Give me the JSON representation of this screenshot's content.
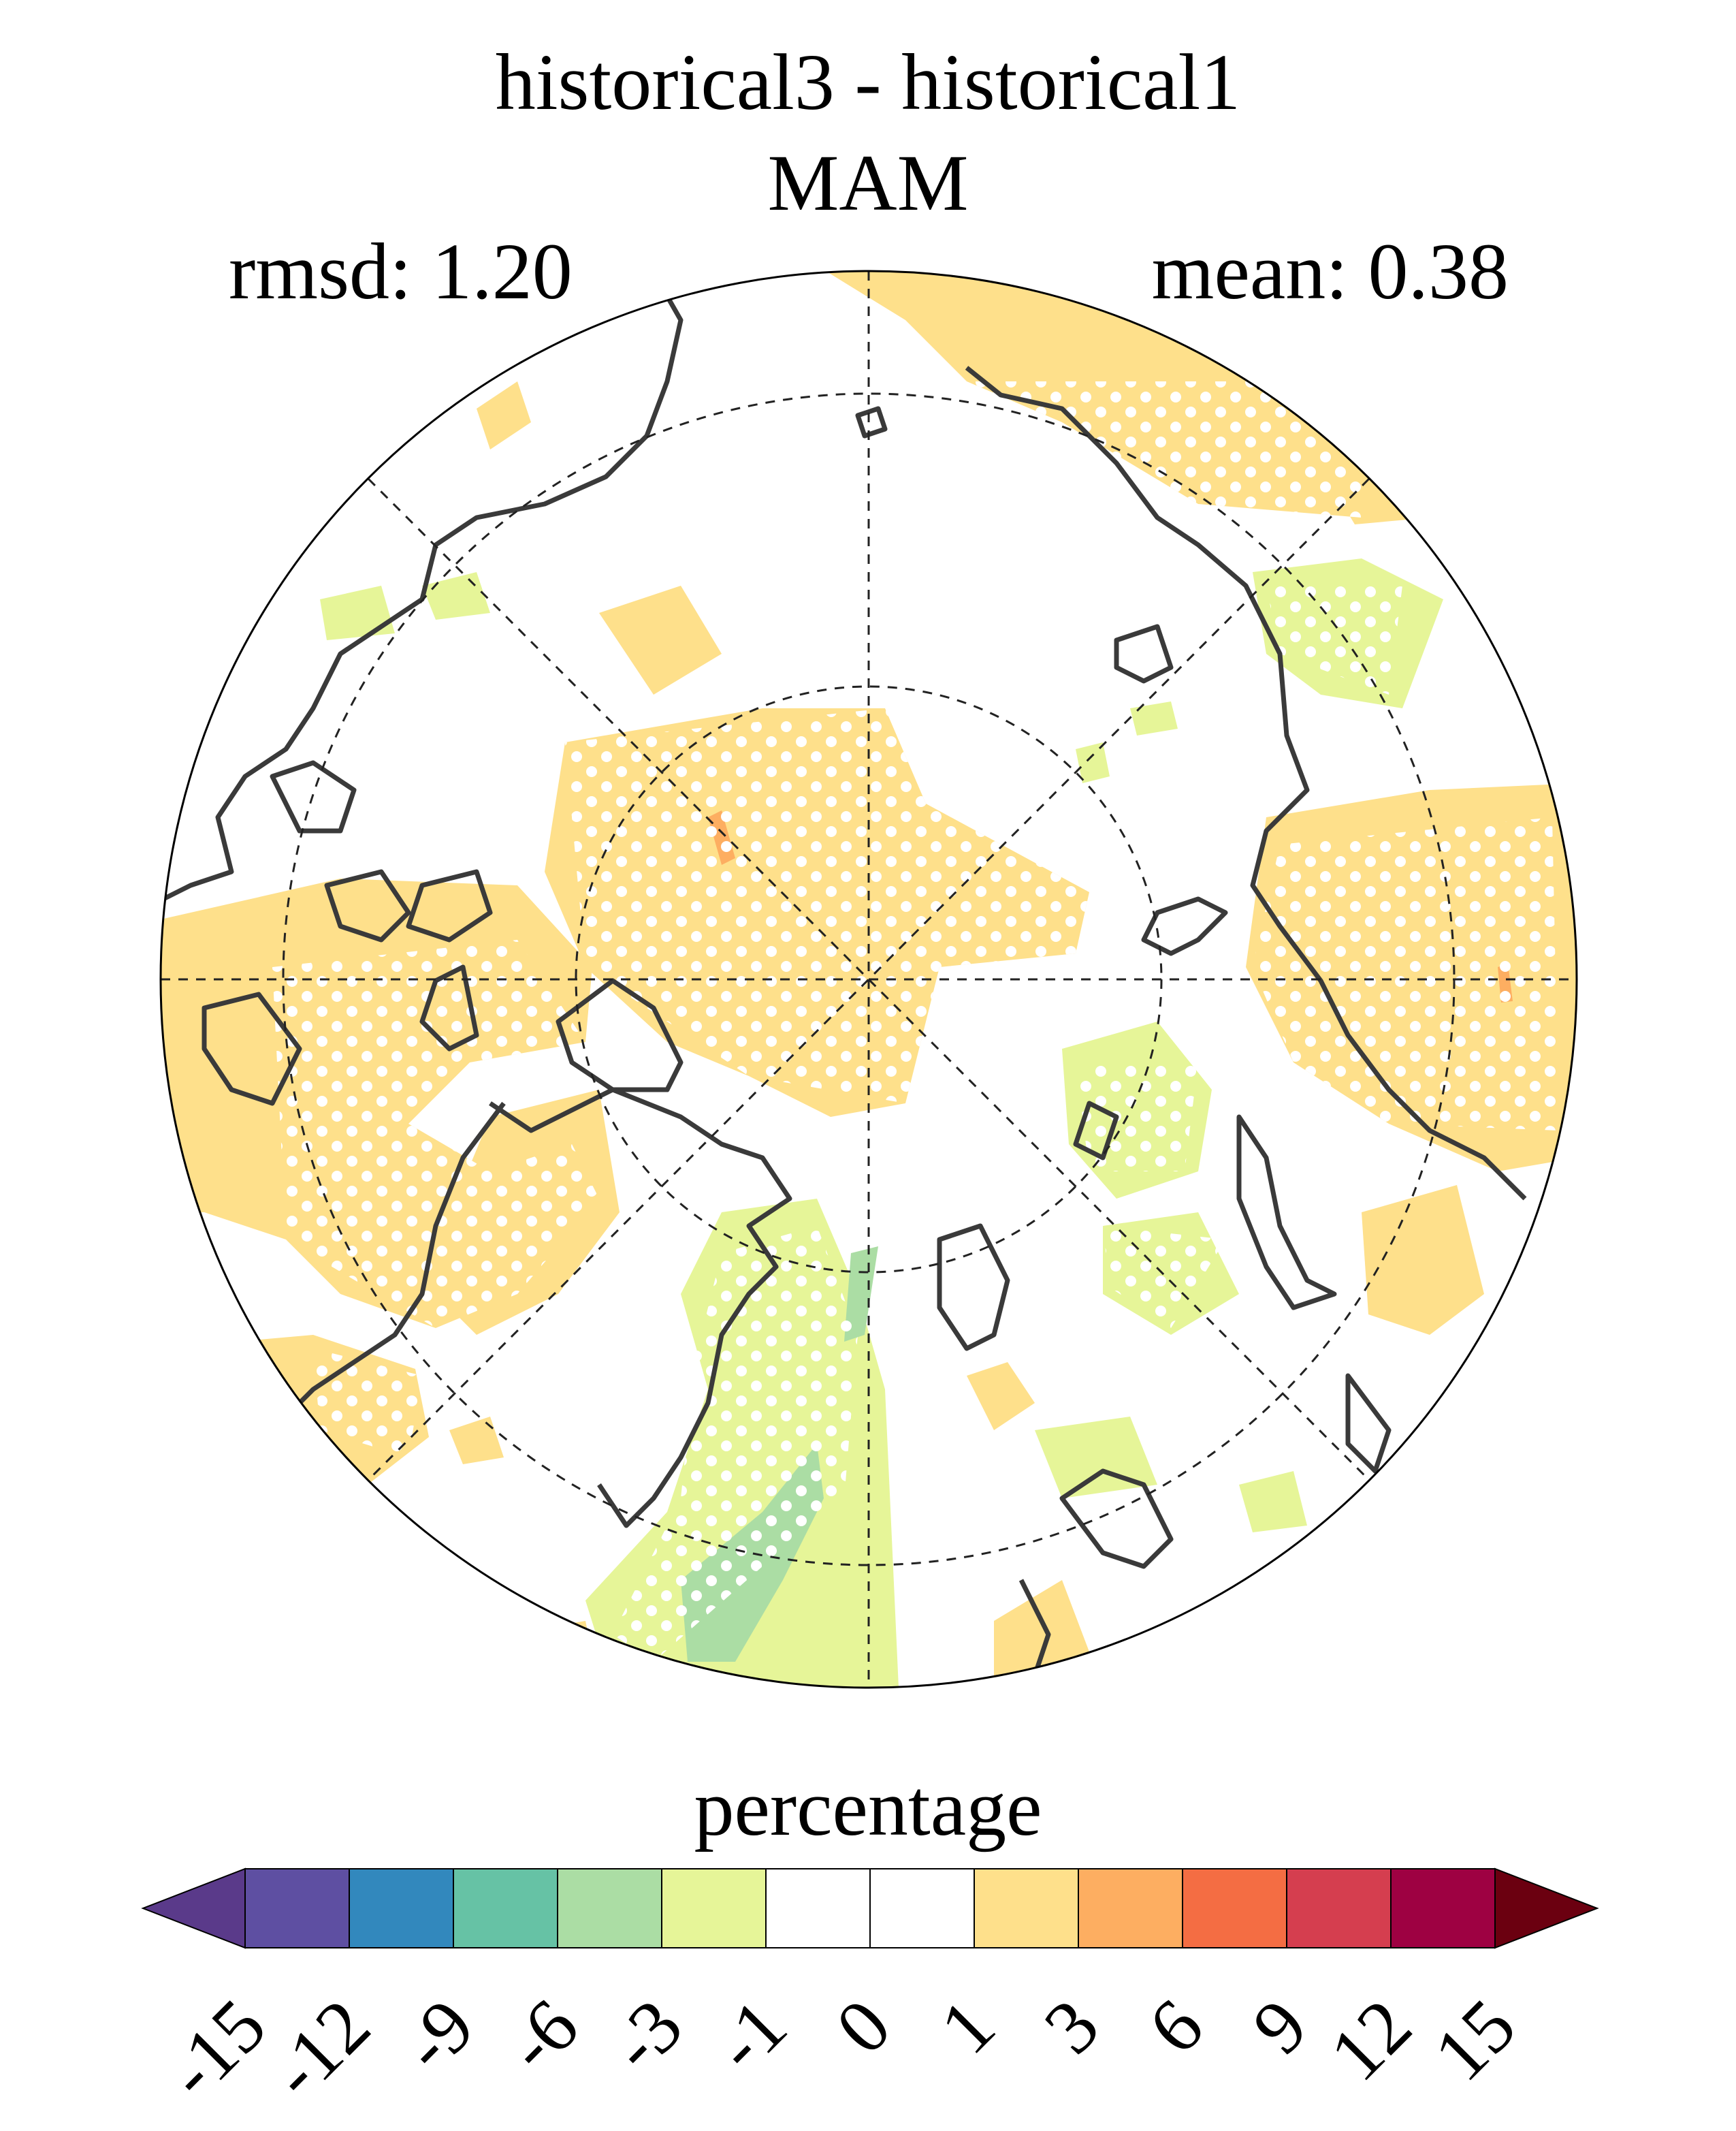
{
  "title": {
    "line1": "historical3 - historical1",
    "line2": "MAM"
  },
  "stats": {
    "rmsd": "rmsd: 1.20",
    "mean": "mean: 0.38"
  },
  "map": {
    "projection": "north polar stereographic",
    "graticule": "dashed",
    "stippling": "white dots mark significant regions",
    "land_outline_color": "#3a3a3a"
  },
  "colorbar": {
    "label": "percentage",
    "ticks": [
      "-15",
      "-12",
      "-9",
      "-6",
      "-3",
      "-1",
      "0",
      "1",
      "3",
      "6",
      "9",
      "12",
      "15"
    ],
    "colors": [
      "#5a3a8a",
      "#5e4fa2",
      "#3288bd",
      "#66c2a5",
      "#abdda4",
      "#e6f598",
      "#ffffff",
      "#ffffff",
      "#fee08b",
      "#fdae61",
      "#f46d43",
      "#d53e4f",
      "#9e0142",
      "#6b0010"
    ],
    "under_color": "#5a3a8a",
    "over_color": "#6b0010"
  }
}
